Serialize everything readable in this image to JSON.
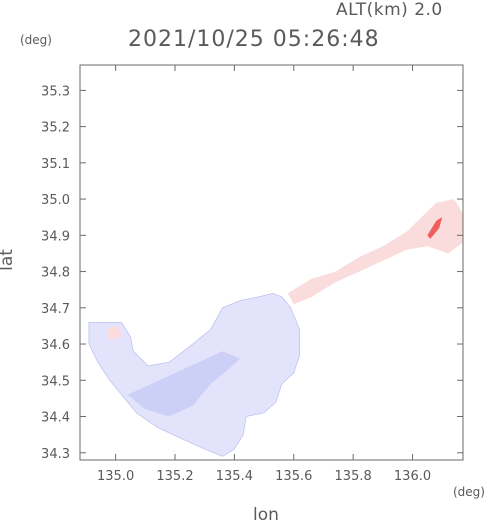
{
  "header": {
    "alt_label": "ALT(km) 2.0",
    "time_label": "2021/10/25 05:26:48"
  },
  "chart_data": {
    "type": "heatmap",
    "title": "2021/10/25 05:26:48",
    "subtitle": "ALT(km) 2.0",
    "xlabel": "lon",
    "ylabel": "lat",
    "x_unit": "(deg)",
    "y_unit": "(deg)",
    "xlim": [
      134.88,
      136.17
    ],
    "ylim": [
      34.28,
      35.37
    ],
    "x_ticks": [
      135.0,
      135.2,
      135.4,
      135.6,
      135.8,
      136.0
    ],
    "x_tick_labels": [
      "135.0",
      "135.2",
      "135.4",
      "135.6",
      "135.8",
      "136.0"
    ],
    "y_ticks": [
      34.3,
      34.4,
      34.5,
      34.6,
      34.7,
      34.8,
      34.9,
      35.0,
      35.1,
      35.2,
      35.3
    ],
    "y_tick_labels": [
      "34.3",
      "34.4",
      "34.5",
      "34.6",
      "34.7",
      "34.8",
      "34.9",
      "35.0",
      "35.1",
      "35.2",
      "35.3"
    ],
    "grid": false,
    "colors": {
      "negative_light": "#e3e3fb",
      "negative_mid": "#cdd0f6",
      "negative_strong": "#7d7fe0",
      "positive_light": "#fbdcdc",
      "positive_strong": "#ef5d5d"
    },
    "regions": [
      {
        "name": "osaka-bay-area",
        "sign": "negative",
        "polygon": [
          [
            134.91,
            34.66
          ],
          [
            134.96,
            34.66
          ],
          [
            135.02,
            34.66
          ],
          [
            135.05,
            34.62
          ],
          [
            135.06,
            34.58
          ],
          [
            135.11,
            34.54
          ],
          [
            135.18,
            34.55
          ],
          [
            135.26,
            34.6
          ],
          [
            135.32,
            34.64
          ],
          [
            135.36,
            34.7
          ],
          [
            135.42,
            34.72
          ],
          [
            135.48,
            34.73
          ],
          [
            135.53,
            34.74
          ],
          [
            135.56,
            34.73
          ],
          [
            135.59,
            34.7
          ],
          [
            135.62,
            34.64
          ],
          [
            135.62,
            34.57
          ],
          [
            135.6,
            34.52
          ],
          [
            135.56,
            34.49
          ],
          [
            135.54,
            34.44
          ],
          [
            135.5,
            34.41
          ],
          [
            135.44,
            34.4
          ],
          [
            135.43,
            34.35
          ],
          [
            135.4,
            34.31
          ],
          [
            135.36,
            34.29
          ],
          [
            135.3,
            34.31
          ],
          [
            135.22,
            34.34
          ],
          [
            135.14,
            34.37
          ],
          [
            135.07,
            34.41
          ],
          [
            135.02,
            34.46
          ],
          [
            134.98,
            34.5
          ],
          [
            134.94,
            34.55
          ],
          [
            134.91,
            34.6
          ]
        ]
      },
      {
        "name": "darker-band-south",
        "sign": "negative-mid",
        "polygon": [
          [
            135.04,
            34.46
          ],
          [
            135.1,
            34.42
          ],
          [
            135.18,
            34.4
          ],
          [
            135.26,
            34.43
          ],
          [
            135.32,
            34.49
          ],
          [
            135.38,
            34.53
          ],
          [
            135.42,
            34.56
          ],
          [
            135.36,
            34.58
          ],
          [
            135.28,
            34.55
          ],
          [
            135.2,
            34.52
          ],
          [
            135.12,
            34.49
          ]
        ]
      },
      {
        "name": "northeast-plume",
        "sign": "positive",
        "polygon": [
          [
            135.58,
            34.74
          ],
          [
            135.66,
            34.78
          ],
          [
            135.74,
            34.8
          ],
          [
            135.82,
            34.84
          ],
          [
            135.9,
            34.87
          ],
          [
            135.98,
            34.91
          ],
          [
            136.03,
            34.95
          ],
          [
            136.08,
            34.99
          ],
          [
            136.14,
            35.0
          ],
          [
            136.17,
            34.96
          ],
          [
            136.17,
            34.88
          ],
          [
            136.12,
            34.85
          ],
          [
            136.05,
            34.87
          ],
          [
            135.98,
            34.86
          ],
          [
            135.9,
            34.83
          ],
          [
            135.82,
            34.8
          ],
          [
            135.74,
            34.77
          ],
          [
            135.66,
            34.73
          ],
          [
            135.6,
            34.71
          ]
        ]
      },
      {
        "name": "plume-core",
        "sign": "positive-strong",
        "polygon": [
          [
            136.06,
            34.89
          ],
          [
            136.09,
            34.92
          ],
          [
            136.1,
            34.95
          ],
          [
            136.08,
            34.94
          ],
          [
            136.05,
            34.9
          ]
        ]
      },
      {
        "name": "west-coast-patch",
        "sign": "positive",
        "polygon": [
          [
            134.97,
            34.64
          ],
          [
            135.01,
            34.65
          ],
          [
            135.02,
            34.62
          ],
          [
            134.98,
            34.61
          ]
        ]
      }
    ]
  }
}
